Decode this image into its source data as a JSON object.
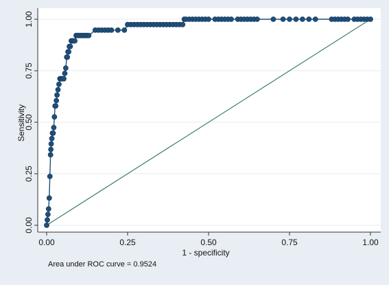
{
  "chart_data": {
    "type": "line",
    "title": "",
    "xlabel": "1 - specificity",
    "ylabel": "Sensitivity",
    "xlim": [
      0,
      1
    ],
    "ylim": [
      0,
      1
    ],
    "grid": true,
    "x_ticks": [
      0.0,
      0.25,
      0.5,
      0.75,
      1.0
    ],
    "y_ticks": [
      0.0,
      0.25,
      0.5,
      0.75,
      1.0
    ],
    "x_tick_labels": [
      "0.00",
      "0.25",
      "0.50",
      "0.75",
      "1.00"
    ],
    "y_tick_labels": [
      "0.00",
      "0.25",
      "0.50",
      "0.75",
      "1.00"
    ],
    "annotation": "Area under ROC curve = 0.9524",
    "colors": {
      "background": "#e8eef3",
      "plot_background": "#ffffff",
      "grid": "#e4ebf1",
      "roc_curve": "#1f4e79",
      "marker": "#1f4e79",
      "reference_line": "#3a7d6e"
    },
    "series": [
      {
        "x": [
          0.0,
          0.002,
          0.004,
          0.006,
          0.008,
          0.01,
          0.012,
          0.013,
          0.014,
          0.016,
          0.018,
          0.02,
          0.022,
          0.024,
          0.026,
          0.028,
          0.03,
          0.032,
          0.035,
          0.038,
          0.041,
          0.044,
          0.047,
          0.05,
          0.053,
          0.056,
          0.059,
          0.062,
          0.064,
          0.066,
          0.068,
          0.07,
          0.073,
          0.076,
          0.079,
          0.083,
          0.087,
          0.091,
          0.095,
          0.1,
          0.105,
          0.11,
          0.115,
          0.12,
          0.125,
          0.13,
          0.15,
          0.16,
          0.17,
          0.18,
          0.19,
          0.2,
          0.22,
          0.24,
          0.25,
          0.26,
          0.27,
          0.28,
          0.29,
          0.3,
          0.31,
          0.32,
          0.33,
          0.34,
          0.35,
          0.36,
          0.37,
          0.38,
          0.39,
          0.4,
          0.41,
          0.42,
          0.425,
          0.43,
          0.44,
          0.45,
          0.46,
          0.47,
          0.48,
          0.49,
          0.5,
          0.52,
          0.53,
          0.54,
          0.55,
          0.56,
          0.57,
          0.59,
          0.6,
          0.61,
          0.62,
          0.63,
          0.64,
          0.65,
          0.7,
          0.73,
          0.75,
          0.77,
          0.79,
          0.81,
          0.83,
          0.88,
          0.89,
          0.9,
          0.91,
          0.92,
          0.93,
          0.95,
          0.96,
          0.97,
          0.98,
          0.99,
          1.0
        ],
        "y": [
          0.0,
          0.026,
          0.053,
          0.079,
          0.132,
          0.237,
          0.342,
          0.368,
          0.395,
          0.421,
          0.447,
          0.447,
          0.474,
          0.526,
          0.579,
          0.579,
          0.605,
          0.632,
          0.658,
          0.684,
          0.711,
          0.711,
          0.711,
          0.711,
          0.711,
          0.737,
          0.763,
          0.816,
          0.816,
          0.842,
          0.842,
          0.868,
          0.868,
          0.895,
          0.895,
          0.895,
          0.895,
          0.921,
          0.921,
          0.921,
          0.921,
          0.921,
          0.921,
          0.921,
          0.921,
          0.921,
          0.947,
          0.947,
          0.947,
          0.947,
          0.947,
          0.947,
          0.947,
          0.947,
          0.974,
          0.974,
          0.974,
          0.974,
          0.974,
          0.974,
          0.974,
          0.974,
          0.974,
          0.974,
          0.974,
          0.974,
          0.974,
          0.974,
          0.974,
          0.974,
          0.974,
          0.974,
          1.0,
          1.0,
          1.0,
          1.0,
          1.0,
          1.0,
          1.0,
          1.0,
          1.0,
          1.0,
          1.0,
          1.0,
          1.0,
          1.0,
          1.0,
          1.0,
          1.0,
          1.0,
          1.0,
          1.0,
          1.0,
          1.0,
          1.0,
          1.0,
          1.0,
          1.0,
          1.0,
          1.0,
          1.0,
          1.0,
          1.0,
          1.0,
          1.0,
          1.0,
          1.0,
          1.0,
          1.0,
          1.0,
          1.0,
          1.0,
          1.0
        ]
      },
      {
        "x": [
          0.0,
          1.0
        ],
        "y": [
          0.0,
          1.0
        ]
      }
    ]
  }
}
